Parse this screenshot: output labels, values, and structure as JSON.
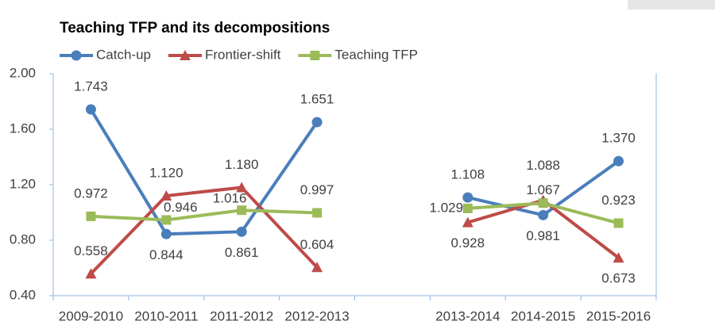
{
  "chart_data": {
    "type": "line",
    "title": "Teaching TFP and its decompositions",
    "categories": [
      "2009-2010",
      "2010-2011",
      "2011-2012",
      "2012-2013",
      null,
      "2013-2014",
      "2014-2015",
      "2015-2016"
    ],
    "series": [
      {
        "name": "Catch-up",
        "color": "#4a7ebb",
        "marker": "circle",
        "values": [
          1.743,
          0.844,
          0.861,
          1.651,
          null,
          1.108,
          0.981,
          1.37
        ],
        "value_labels": [
          "1.743",
          "0.844",
          "0.861",
          "1.651",
          null,
          "1.108",
          "0.981",
          "1.370"
        ]
      },
      {
        "name": "Frontier-shift",
        "color": "#be4b48",
        "marker": "triangle",
        "values": [
          0.558,
          1.12,
          1.18,
          0.604,
          null,
          0.928,
          1.088,
          0.673
        ],
        "value_labels": [
          "0.558",
          "1.120",
          "1.180",
          "0.604",
          null,
          "0.928",
          "1.088",
          "0.673"
        ]
      },
      {
        "name": "Teaching TFP",
        "color": "#9bbb59",
        "marker": "square",
        "values": [
          0.972,
          0.946,
          1.016,
          0.997,
          null,
          1.029,
          1.067,
          0.923
        ],
        "value_labels": [
          "0.972",
          "0.946",
          "1.016",
          "0.997",
          null,
          "1.029",
          "1.067",
          "0.923"
        ]
      }
    ],
    "ylim": [
      0.4,
      2.0
    ],
    "yticks": [
      {
        "value": 0.4,
        "label": "0.40"
      },
      {
        "value": 0.8,
        "label": "0.80"
      },
      {
        "value": 1.2,
        "label": "1.20"
      },
      {
        "value": 1.6,
        "label": "1.60"
      },
      {
        "value": 2.0,
        "label": "2.00"
      }
    ],
    "grid": false,
    "legend": "top"
  }
}
